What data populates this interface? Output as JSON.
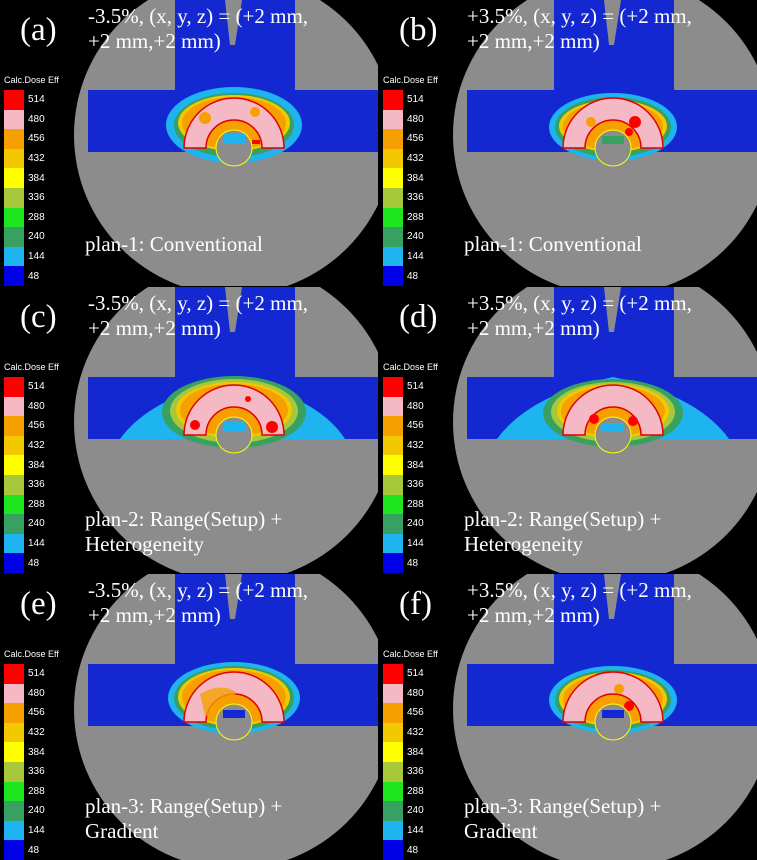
{
  "legend": {
    "title": "Calc.Dose Eff",
    "levels": [
      {
        "label": "514",
        "color": "#ff0000"
      },
      {
        "label": "480",
        "color": "#f5b9c6"
      },
      {
        "label": "456",
        "color": "#f5a000"
      },
      {
        "label": "432",
        "color": "#f2c800"
      },
      {
        "label": "384",
        "color": "#ffff00"
      },
      {
        "label": "336",
        "color": "#a8c83c"
      },
      {
        "label": "288",
        "color": "#1ee61e"
      },
      {
        "label": "240",
        "color": "#38a060"
      },
      {
        "label": "144",
        "color": "#1eb4f0"
      },
      {
        "label": "48",
        "color": "#0000e6"
      }
    ]
  },
  "panels": [
    {
      "tag": "(a)",
      "shift_line1": "-3.5%, (x, y, z) = (+2 mm,",
      "shift_line2": "+2 mm,+2 mm)",
      "plan_line1": "plan-1: Conventional",
      "plan_line2": ""
    },
    {
      "tag": "(b)",
      "shift_line1": "+3.5%, (x, y, z) = (+2 mm,",
      "shift_line2": "+2 mm,+2 mm)",
      "plan_line1": "plan-1: Conventional",
      "plan_line2": ""
    },
    {
      "tag": "(c)",
      "shift_line1": "-3.5%, (x, y, z) = (+2 mm,",
      "shift_line2": "+2 mm,+2 mm)",
      "plan_line1": "plan-2: Range(Setup) +",
      "plan_line2": "Heterogeneity"
    },
    {
      "tag": "(d)",
      "shift_line1": "+3.5%, (x, y, z) = (+2 mm,",
      "shift_line2": "+2 mm,+2 mm)",
      "plan_line1": "plan-2: Range(Setup) +",
      "plan_line2": "Heterogeneity"
    },
    {
      "tag": "(e)",
      "shift_line1": "-3.5%, (x, y, z) = (+2 mm,",
      "shift_line2": "+2 mm,+2 mm)",
      "plan_line1": "plan-3: Range(Setup) +",
      "plan_line2": "Gradient"
    },
    {
      "tag": "(f)",
      "shift_line1": "+3.5%, (x, y, z) = (+2 mm,",
      "shift_line2": "+2 mm,+2 mm)",
      "plan_line1": "plan-3: Range(Setup) +",
      "plan_line2": "Gradient"
    }
  ]
}
